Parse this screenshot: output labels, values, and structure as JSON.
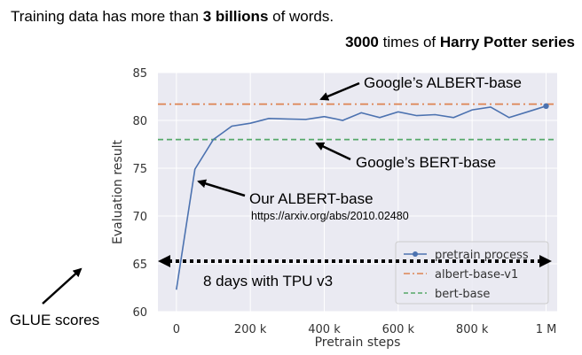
{
  "header": {
    "line1_pre": "Training data has more than ",
    "line1_bold": "3 billions",
    "line1_post": " of words.",
    "line2_bold1": "3000",
    "line2_mid": " times of ",
    "line2_bold2": "Harry Potter series"
  },
  "annotations": {
    "google_albert": "Google’s ALBERT-base",
    "google_bert": "Google’s BERT-base",
    "our_albert": "Our ALBERT-base",
    "url": "https://arxiv.org/abs/2010.02480",
    "tpu": "8 days with TPU v3",
    "glue": "GLUE scores"
  },
  "colors": {
    "plot_bg": "#eaeaf2",
    "pretrain": "#4c72b0",
    "albert": "#dd8452",
    "bert": "#55a868"
  },
  "chart_data": {
    "type": "line",
    "title": "",
    "xlabel": "Pretrain steps",
    "ylabel": "Evaluation result",
    "xlim": [
      -50000,
      1030000
    ],
    "ylim": [
      60,
      85
    ],
    "grid": true,
    "legend_placement": "lower-right",
    "x_ticks": [
      0,
      200000,
      400000,
      600000,
      800000,
      1000000
    ],
    "x_tick_labels": [
      "0",
      "200 k",
      "400 k",
      "600 k",
      "800 k",
      "1 M"
    ],
    "y_ticks": [
      60,
      65,
      70,
      75,
      80,
      85
    ],
    "y_tick_labels": [
      "60",
      "65",
      "70",
      "75",
      "80",
      "85"
    ],
    "series": [
      {
        "name": "pretrain process",
        "style": "line",
        "x": [
          0,
          50000,
          100000,
          150000,
          200000,
          250000,
          300000,
          350000,
          400000,
          450000,
          500000,
          550000,
          600000,
          650000,
          700000,
          750000,
          800000,
          850000,
          900000,
          950000,
          1000000
        ],
        "y": [
          62.3,
          74.9,
          78.0,
          79.4,
          79.7,
          80.2,
          80.15,
          80.1,
          80.4,
          80.0,
          80.8,
          80.3,
          80.9,
          80.5,
          80.6,
          80.3,
          81.1,
          81.4,
          80.3,
          80.9,
          81.5
        ]
      },
      {
        "name": "albert-base-v1",
        "style": "dashdot",
        "y_const": 81.7
      },
      {
        "name": "bert-base",
        "style": "dashed",
        "y_const": 78.0
      }
    ]
  }
}
